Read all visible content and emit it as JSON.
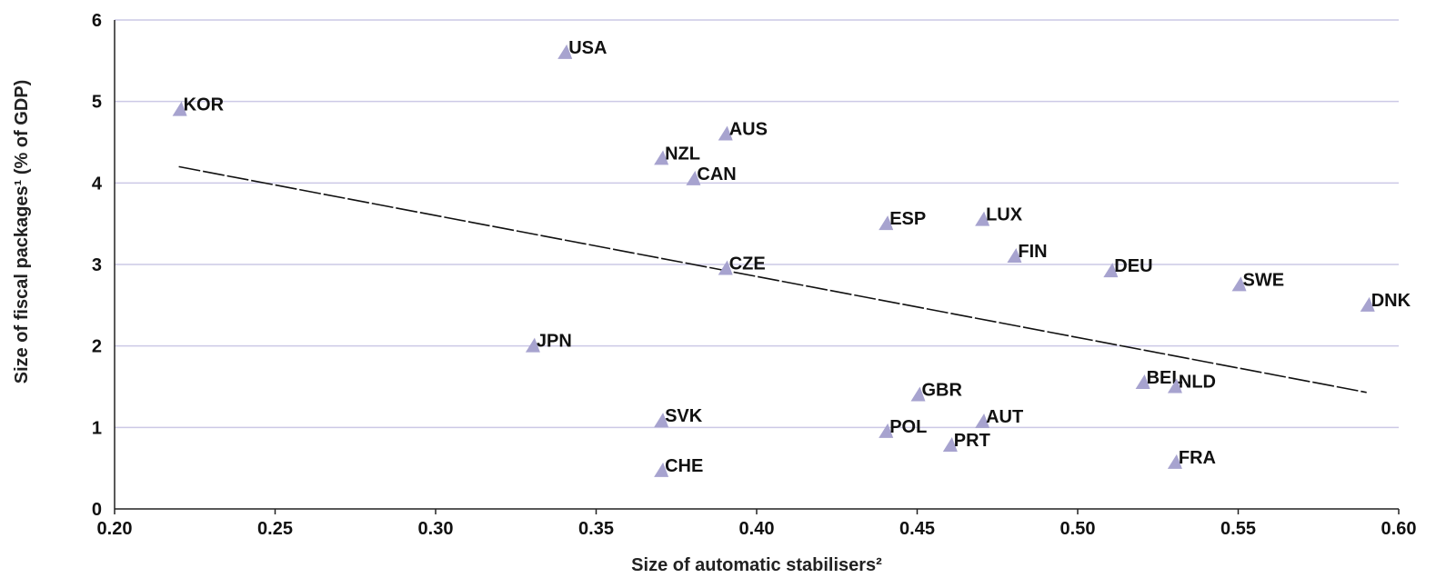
{
  "chart_data": {
    "type": "scatter",
    "title": "",
    "xlabel": "Size of automatic stabilisers²",
    "ylabel": "Size of fiscal packages¹ (% of GDP)",
    "xlim": [
      0.2,
      0.6
    ],
    "ylim": [
      0,
      6
    ],
    "x_ticks": [
      "0.20",
      "0.25",
      "0.30",
      "0.35",
      "0.40",
      "0.45",
      "0.50",
      "0.55",
      "0.60"
    ],
    "y_ticks": [
      "0",
      "1",
      "2",
      "3",
      "4",
      "5",
      "6"
    ],
    "grid": "horizontal",
    "marker": "triangle",
    "colors": {
      "marker": "#a7a3cf",
      "grid": "#ccc9e6",
      "trend": "#111111"
    },
    "points": [
      {
        "label": "USA",
        "x": 0.34,
        "y": 5.6
      },
      {
        "label": "KOR",
        "x": 0.22,
        "y": 4.9
      },
      {
        "label": "AUS",
        "x": 0.39,
        "y": 4.6
      },
      {
        "label": "NZL",
        "x": 0.37,
        "y": 4.3
      },
      {
        "label": "CAN",
        "x": 0.38,
        "y": 4.05
      },
      {
        "label": "ESP",
        "x": 0.44,
        "y": 3.5
      },
      {
        "label": "LUX",
        "x": 0.47,
        "y": 3.55
      },
      {
        "label": "FIN",
        "x": 0.48,
        "y": 3.1
      },
      {
        "label": "DEU",
        "x": 0.51,
        "y": 2.92
      },
      {
        "label": "CZE",
        "x": 0.39,
        "y": 2.95
      },
      {
        "label": "SWE",
        "x": 0.55,
        "y": 2.75
      },
      {
        "label": "DNK",
        "x": 0.59,
        "y": 2.5
      },
      {
        "label": "JPN",
        "x": 0.33,
        "y": 2.0
      },
      {
        "label": "BEL",
        "x": 0.52,
        "y": 1.55
      },
      {
        "label": "NLD",
        "x": 0.53,
        "y": 1.5
      },
      {
        "label": "GBR",
        "x": 0.45,
        "y": 1.4
      },
      {
        "label": "SVK",
        "x": 0.37,
        "y": 1.08
      },
      {
        "label": "AUT",
        "x": 0.47,
        "y": 1.07
      },
      {
        "label": "POL",
        "x": 0.44,
        "y": 0.95
      },
      {
        "label": "PRT",
        "x": 0.46,
        "y": 0.78
      },
      {
        "label": "FRA",
        "x": 0.53,
        "y": 0.57
      },
      {
        "label": "CHE",
        "x": 0.37,
        "y": 0.47
      }
    ],
    "trendline": {
      "x": [
        0.22,
        0.59
      ],
      "y": [
        4.2,
        1.43
      ]
    }
  }
}
